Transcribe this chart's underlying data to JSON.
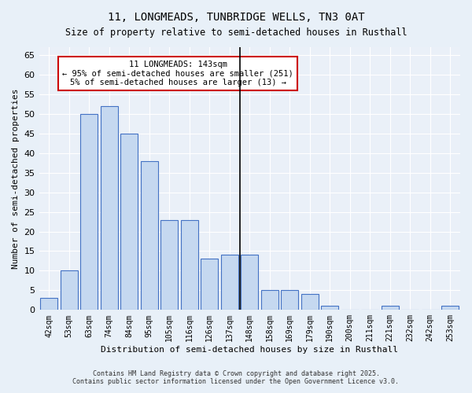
{
  "title1": "11, LONGMEADS, TUNBRIDGE WELLS, TN3 0AT",
  "title2": "Size of property relative to semi-detached houses in Rusthall",
  "xlabel": "Distribution of semi-detached houses by size in Rusthall",
  "ylabel": "Number of semi-detached properties",
  "categories": [
    "42sqm",
    "53sqm",
    "63sqm",
    "74sqm",
    "84sqm",
    "95sqm",
    "105sqm",
    "116sqm",
    "126sqm",
    "137sqm",
    "148sqm",
    "158sqm",
    "169sqm",
    "179sqm",
    "190sqm",
    "200sqm",
    "211sqm",
    "221sqm",
    "232sqm",
    "242sqm",
    "253sqm"
  ],
  "values": [
    3,
    10,
    50,
    52,
    45,
    38,
    23,
    23,
    13,
    14,
    14,
    5,
    5,
    4,
    1,
    0,
    0,
    1,
    0,
    0,
    1
  ],
  "bar_color": "#c5d8f0",
  "bar_edge_color": "#4472c4",
  "highlight_index": 9,
  "highlight_line_color": "#000000",
  "ylim": [
    0,
    67
  ],
  "yticks": [
    0,
    5,
    10,
    15,
    20,
    25,
    30,
    35,
    40,
    45,
    50,
    55,
    60,
    65
  ],
  "annotation_title": "11 LONGMEADS: 143sqm",
  "annotation_line1": "← 95% of semi-detached houses are smaller (251)",
  "annotation_line2": "5% of semi-detached houses are larger (13) →",
  "annotation_box_color": "#ffffff",
  "annotation_box_edge": "#cc0000",
  "footer1": "Contains HM Land Registry data © Crown copyright and database right 2025.",
  "footer2": "Contains public sector information licensed under the Open Government Licence v3.0.",
  "bg_color": "#e8f0f8",
  "plot_bg_color": "#eaf0f8"
}
